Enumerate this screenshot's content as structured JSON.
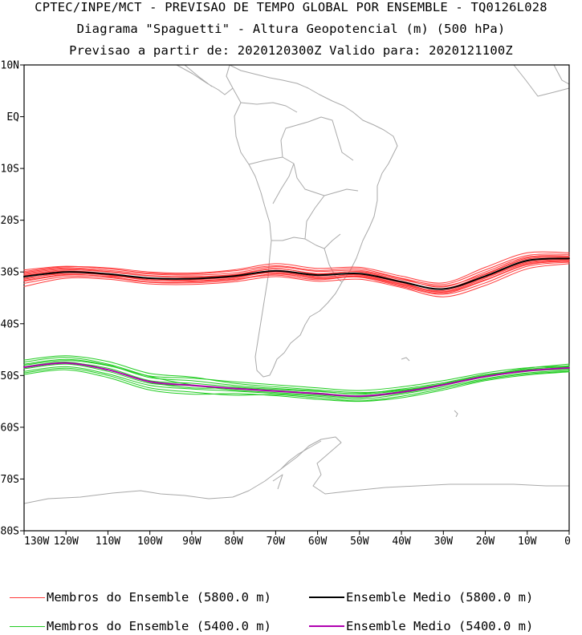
{
  "header": {
    "line1": "CPTEC/INPE/MCT - PREVISAO DE TEMPO GLOBAL POR ENSEMBLE - TQ0126L028",
    "line2": "Diagrama \"Spaguetti\" - Altura Geopotencial (m) (500 hPa)",
    "line3": "Previsao a partir de: 2020120300Z  Valido para: 2020121100Z"
  },
  "legend": [
    {
      "label": "Membros do Ensemble (5800.0 m)",
      "color": "#ff3a3a"
    },
    {
      "label": "Ensemble Medio (5800.0 m)",
      "color": "#000000"
    },
    {
      "label": "Membros do Ensemble (5400.0 m)",
      "color": "#22cc22"
    },
    {
      "label": "Ensemble Medio (5400.0 m)",
      "color": "#b000b0"
    }
  ],
  "chart_data": {
    "type": "line",
    "xlim": [
      -130,
      0
    ],
    "ylim": [
      -80,
      10
    ],
    "x_ticks": [
      {
        "value": -130,
        "label": "130W"
      },
      {
        "value": -120,
        "label": "120W"
      },
      {
        "value": -110,
        "label": "110W"
      },
      {
        "value": -100,
        "label": "100W"
      },
      {
        "value": -90,
        "label": "90W"
      },
      {
        "value": -80,
        "label": "80W"
      },
      {
        "value": -70,
        "label": "70W"
      },
      {
        "value": -60,
        "label": "60W"
      },
      {
        "value": -50,
        "label": "50W"
      },
      {
        "value": -40,
        "label": "40W"
      },
      {
        "value": -30,
        "label": "30W"
      },
      {
        "value": -20,
        "label": "20W"
      },
      {
        "value": -10,
        "label": "10W"
      },
      {
        "value": 0,
        "label": "0"
      }
    ],
    "y_ticks": [
      {
        "value": 10,
        "label": "10N"
      },
      {
        "value": 0,
        "label": "EQ"
      },
      {
        "value": -10,
        "label": "10S"
      },
      {
        "value": -20,
        "label": "20S"
      },
      {
        "value": -30,
        "label": "30S"
      },
      {
        "value": -40,
        "label": "40S"
      },
      {
        "value": -50,
        "label": "50S"
      },
      {
        "value": -60,
        "label": "60S"
      },
      {
        "value": -70,
        "label": "70S"
      },
      {
        "value": -80,
        "label": "80S"
      }
    ],
    "x": [
      -130,
      -120,
      -110,
      -100,
      -90,
      -80,
      -70,
      -60,
      -50,
      -40,
      -30,
      -20,
      -10,
      0
    ],
    "series": [
      {
        "name": "Membros do Ensemble (5800.0 m)",
        "color": "#ff3a3a",
        "width": 1,
        "lines": [
          [
            -30.5,
            -29.6,
            -30.0,
            -30.8,
            -31.0,
            -30.6,
            -29.4,
            -30.3,
            -30.0,
            -31.8,
            -33.2,
            -30.5,
            -27.5,
            -27.2
          ],
          [
            -31.2,
            -30.3,
            -30.6,
            -31.6,
            -31.5,
            -31.0,
            -30.1,
            -31.0,
            -30.5,
            -32.1,
            -33.8,
            -31.2,
            -28.3,
            -27.8
          ],
          [
            -29.6,
            -28.9,
            -29.4,
            -30.2,
            -30.4,
            -29.8,
            -28.8,
            -29.7,
            -29.4,
            -31.2,
            -32.4,
            -29.6,
            -26.8,
            -26.6
          ],
          [
            -32.2,
            -30.9,
            -31.1,
            -32.0,
            -32.1,
            -31.6,
            -30.3,
            -31.3,
            -31.0,
            -32.8,
            -34.3,
            -32.1,
            -28.9,
            -28.1
          ],
          [
            -30.1,
            -29.2,
            -29.7,
            -30.4,
            -30.6,
            -30.2,
            -29.0,
            -29.9,
            -29.7,
            -31.3,
            -32.9,
            -30.0,
            -27.1,
            -26.9
          ],
          [
            -31.8,
            -30.6,
            -30.8,
            -31.3,
            -31.7,
            -31.4,
            -30.6,
            -31.5,
            -30.9,
            -32.6,
            -34.1,
            -31.6,
            -28.6,
            -27.9
          ],
          [
            -29.9,
            -29.0,
            -29.2,
            -30.0,
            -30.2,
            -29.6,
            -28.4,
            -29.3,
            -29.1,
            -30.8,
            -32.1,
            -29.1,
            -26.3,
            -26.3
          ],
          [
            -32.8,
            -31.2,
            -31.4,
            -32.3,
            -32.4,
            -31.9,
            -30.9,
            -31.8,
            -31.4,
            -33.0,
            -34.8,
            -32.6,
            -29.4,
            -28.4
          ],
          [
            -30.7,
            -29.8,
            -30.3,
            -31.2,
            -31.2,
            -30.9,
            -29.7,
            -30.6,
            -30.3,
            -31.9,
            -33.3,
            -30.8,
            -27.9,
            -27.5
          ],
          [
            -31.4,
            -30.1,
            -30.5,
            -31.5,
            -31.7,
            -31.2,
            -29.9,
            -30.9,
            -30.6,
            -32.3,
            -33.6,
            -31.0,
            -28.1,
            -27.6
          ],
          [
            -30.3,
            -29.4,
            -29.9,
            -30.7,
            -30.9,
            -30.5,
            -29.3,
            -30.4,
            -29.9,
            -31.5,
            -32.7,
            -30.3,
            -27.3,
            -27.0
          ],
          [
            -31.6,
            -30.5,
            -30.9,
            -31.9,
            -31.9,
            -31.4,
            -30.4,
            -31.2,
            -30.8,
            -32.4,
            -33.9,
            -31.5,
            -28.5,
            -27.9
          ]
        ]
      },
      {
        "name": "Membros do Ensemble (5400.0 m)",
        "color": "#22cc22",
        "width": 1,
        "lines": [
          [
            -48.5,
            -47.6,
            -48.6,
            -51.0,
            -51.5,
            -52.2,
            -52.7,
            -53.1,
            -53.5,
            -52.6,
            -51.4,
            -49.8,
            -49.0,
            -48.6
          ],
          [
            -47.4,
            -46.5,
            -47.8,
            -50.2,
            -51.8,
            -52.8,
            -53.3,
            -53.8,
            -54.3,
            -53.2,
            -51.9,
            -50.2,
            -48.9,
            -48.1
          ],
          [
            -49.2,
            -48.3,
            -49.7,
            -51.9,
            -52.6,
            -53.0,
            -53.5,
            -54.0,
            -54.6,
            -53.6,
            -52.2,
            -50.6,
            -49.5,
            -49.0
          ],
          [
            -48.0,
            -47.1,
            -48.1,
            -50.1,
            -50.5,
            -51.2,
            -51.8,
            -52.4,
            -52.9,
            -52.2,
            -51.0,
            -49.5,
            -48.5,
            -48.2
          ],
          [
            -49.8,
            -48.9,
            -50.4,
            -52.8,
            -53.6,
            -53.5,
            -53.9,
            -54.6,
            -55.0,
            -54.3,
            -52.8,
            -51.0,
            -49.9,
            -49.3
          ],
          [
            -47.0,
            -46.2,
            -47.3,
            -49.6,
            -50.3,
            -51.5,
            -52.2,
            -52.8,
            -53.3,
            -52.8,
            -51.6,
            -50.0,
            -48.6,
            -47.8
          ],
          [
            -48.7,
            -47.8,
            -49.2,
            -51.5,
            -52.0,
            -52.6,
            -53.0,
            -53.6,
            -54.1,
            -53.4,
            -51.9,
            -50.3,
            -49.2,
            -48.8
          ],
          [
            -49.5,
            -48.6,
            -50.0,
            -52.4,
            -53.2,
            -53.8,
            -53.7,
            -54.3,
            -54.9,
            -54.0,
            -52.5,
            -50.8,
            -49.7,
            -49.2
          ],
          [
            -47.8,
            -46.9,
            -48.0,
            -50.4,
            -51.0,
            -51.9,
            -52.5,
            -53.0,
            -53.6,
            -52.9,
            -51.7,
            -50.1,
            -48.8,
            -48.3
          ],
          [
            -48.3,
            -47.4,
            -48.9,
            -51.3,
            -52.4,
            -52.4,
            -52.9,
            -53.4,
            -53.9,
            -53.1,
            -51.6,
            -50.0,
            -49.1,
            -48.4
          ]
        ]
      },
      {
        "name": "Ensemble Medio (5800.0 m)",
        "color": "#000000",
        "width": 2,
        "lines": [
          [
            -30.9,
            -30.0,
            -30.4,
            -31.2,
            -31.3,
            -30.8,
            -29.8,
            -30.6,
            -30.3,
            -31.9,
            -33.3,
            -30.8,
            -27.8,
            -27.4
          ]
        ]
      },
      {
        "name": "Ensemble Medio (5400.0 m)",
        "color": "#b000b0",
        "width": 2,
        "lines": [
          [
            -48.4,
            -47.6,
            -48.9,
            -51.2,
            -51.9,
            -52.5,
            -53.0,
            -53.5,
            -54.0,
            -53.2,
            -51.8,
            -50.2,
            -49.1,
            -48.5
          ]
        ]
      }
    ]
  }
}
